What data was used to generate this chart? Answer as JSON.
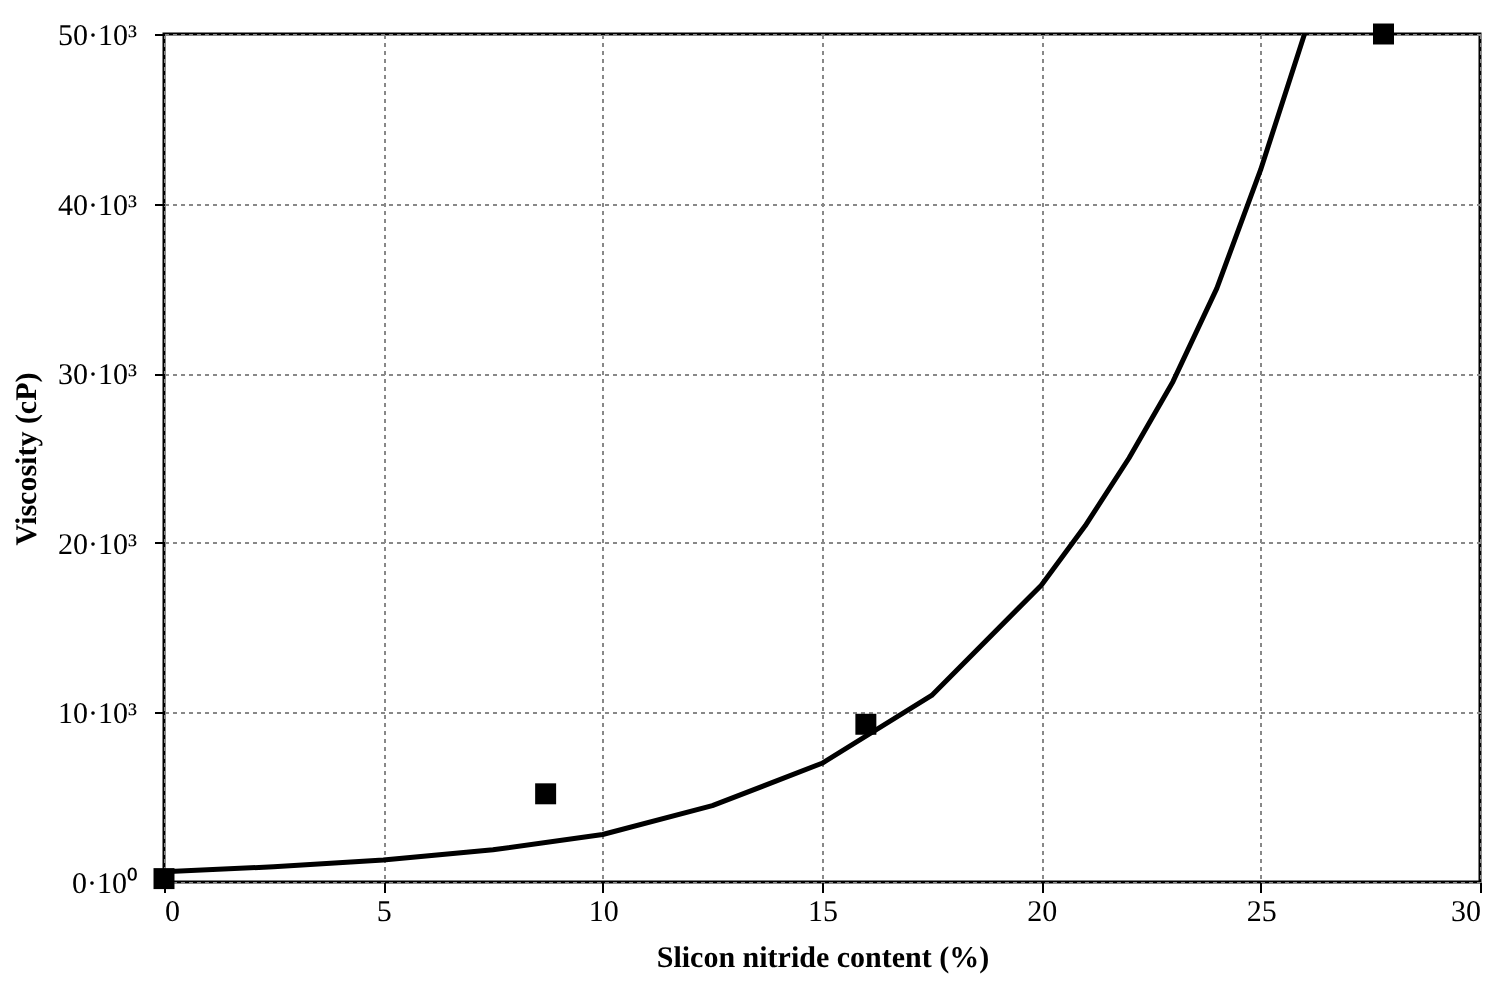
{
  "chart_data": {
    "type": "scatter",
    "xlabel": "Slicon nitride content (%)",
    "ylabel": "Viscosity (cP)",
    "xlim": [
      0,
      30
    ],
    "ylim": [
      0,
      50000
    ],
    "xticks": [
      0,
      5,
      10,
      15,
      20,
      25,
      30
    ],
    "yticks": [
      {
        "value": 0,
        "label": "0·10⁰"
      },
      {
        "value": 10000,
        "label": "10·10³"
      },
      {
        "value": 20000,
        "label": "20·10³"
      },
      {
        "value": 30000,
        "label": "30·10³"
      },
      {
        "value": 40000,
        "label": "40·10³"
      },
      {
        "value": 50000,
        "label": "50·10³"
      }
    ],
    "grid": true,
    "marker": "square",
    "series": [
      {
        "color": "#000000",
        "x": [
          0,
          8.7,
          16,
          27.8
        ],
        "values": [
          200,
          5200,
          9300,
          50000
        ]
      },
      {
        "type": "line",
        "color": "#000000",
        "marker": "none",
        "x": [
          0,
          2.5,
          5,
          7.5,
          10,
          12.5,
          15,
          17.5,
          20,
          21,
          22,
          23,
          24,
          25,
          26
        ],
        "values": [
          600,
          900,
          1300,
          1900,
          2800,
          4500,
          7000,
          11000,
          17500,
          21000,
          25000,
          29500,
          35000,
          42000,
          50000
        ]
      }
    ]
  }
}
